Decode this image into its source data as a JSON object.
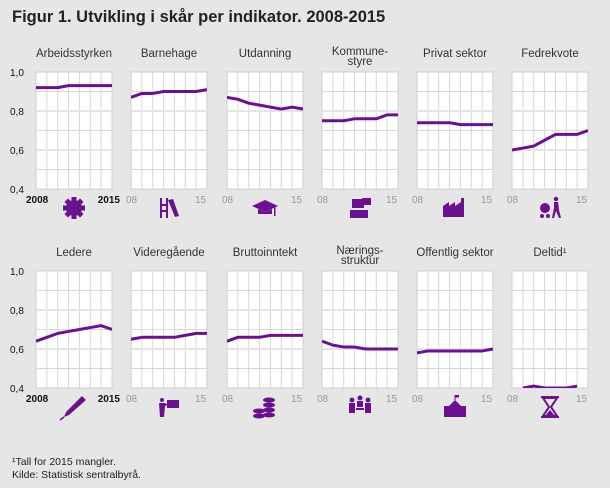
{
  "title": "Figur 1. Utvikling i skår per indikator. 2008-2015",
  "footnotes": [
    "¹Tall for 2015 mangler.",
    "Kilde: Statistisk sentralbyrå."
  ],
  "colors": {
    "line": "#6b118f",
    "background": "#e6e6e6",
    "panel": "#ffffff",
    "grid": "#d8d8d8"
  },
  "chart_data": {
    "type": "line",
    "layout": "small multiples, 2 rows x 6 columns",
    "x": [
      2008,
      2009,
      2010,
      2011,
      2012,
      2013,
      2014,
      2015
    ],
    "ylim": [
      0.4,
      1.0
    ],
    "y_ticks": [
      "0,4",
      "0,6",
      "0,8",
      "1,0"
    ],
    "x_tick_labels_first": [
      "2008",
      "2015"
    ],
    "x_tick_labels_other": [
      "08",
      "15"
    ],
    "grid": true,
    "panels": [
      {
        "name": "Arbeidsstyrken",
        "icon": "gear-icon",
        "values": [
          0.92,
          0.92,
          0.92,
          0.93,
          0.93,
          0.93,
          0.93,
          0.93
        ]
      },
      {
        "name": "Barnehage",
        "icon": "playground-slide-icon",
        "values": [
          0.87,
          0.89,
          0.89,
          0.9,
          0.9,
          0.9,
          0.9,
          0.91
        ]
      },
      {
        "name": "Utdanning",
        "icon": "graduation-cap-icon",
        "values": [
          0.87,
          0.86,
          0.84,
          0.83,
          0.82,
          0.81,
          0.82,
          0.81
        ]
      },
      {
        "name": "Kommune-\nstyre",
        "icon": "ballot-box-icon",
        "values": [
          0.75,
          0.75,
          0.75,
          0.76,
          0.76,
          0.76,
          0.78,
          0.78
        ]
      },
      {
        "name": "Privat sektor",
        "icon": "factory-icon",
        "values": [
          0.74,
          0.74,
          0.74,
          0.74,
          0.73,
          0.73,
          0.73,
          0.73
        ]
      },
      {
        "name": "Fedrekvote",
        "icon": "father-pram-icon",
        "values": [
          0.6,
          0.61,
          0.62,
          0.65,
          0.68,
          0.68,
          0.68,
          0.7
        ]
      },
      {
        "name": "Ledere",
        "icon": "pen-icon",
        "values": [
          0.64,
          0.66,
          0.68,
          0.69,
          0.7,
          0.71,
          0.72,
          0.7
        ]
      },
      {
        "name": "Videregående",
        "icon": "teacher-board-icon",
        "values": [
          0.65,
          0.66,
          0.66,
          0.66,
          0.66,
          0.67,
          0.68,
          0.68
        ]
      },
      {
        "name": "Bruttoinntekt",
        "icon": "coins-icon",
        "values": [
          0.64,
          0.66,
          0.66,
          0.66,
          0.67,
          0.67,
          0.67,
          0.67
        ]
      },
      {
        "name": "Nærings-\nstruktur",
        "icon": "meeting-people-icon",
        "values": [
          0.64,
          0.62,
          0.61,
          0.61,
          0.6,
          0.6,
          0.6,
          0.6
        ]
      },
      {
        "name": "Offentlig sektor",
        "icon": "public-building-icon",
        "values": [
          0.58,
          0.59,
          0.59,
          0.59,
          0.59,
          0.59,
          0.59,
          0.6
        ]
      },
      {
        "name": "Deltid¹",
        "icon": "hourglass-icon",
        "values": [
          null,
          0.4,
          0.41,
          0.4,
          0.4,
          0.4,
          0.41,
          null
        ]
      }
    ]
  }
}
